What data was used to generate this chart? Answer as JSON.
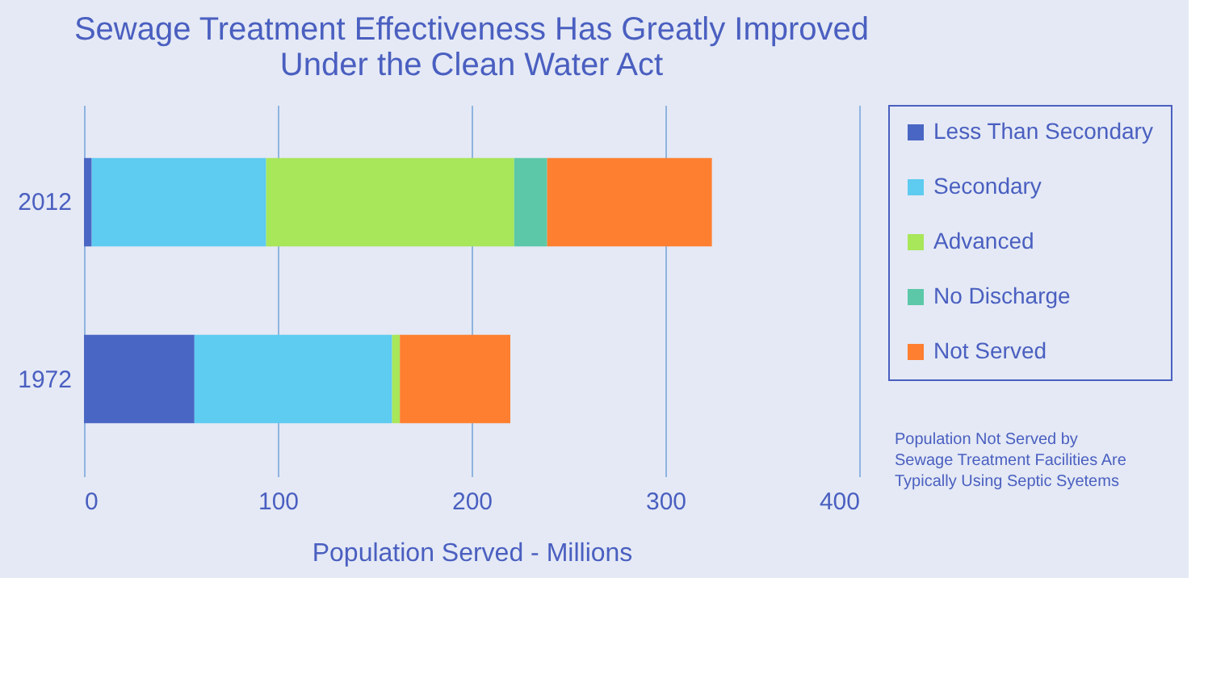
{
  "chart_data": {
    "type": "bar",
    "orientation": "horizontal",
    "stacked": true,
    "title": "Sewage Treatment Effectiveness Has Greatly Improved\nUnder the Clean Water Act",
    "xlabel": "Population Served - Millions",
    "categories": [
      "2012",
      "1972"
    ],
    "series": [
      {
        "name": "Less Than Secondary",
        "color": "#4a66c4",
        "values": [
          4,
          57
        ]
      },
      {
        "name": "Secondary",
        "color": "#5ecbf0",
        "values": [
          90,
          102
        ]
      },
      {
        "name": "Advanced",
        "color": "#a8e65a",
        "values": [
          128,
          4
        ]
      },
      {
        "name": "No Discharge",
        "color": "#5cc8a8",
        "values": [
          17,
          0
        ]
      },
      {
        "name": "Not Served",
        "color": "#ff7f30",
        "values": [
          85,
          57
        ]
      }
    ],
    "xlim": [
      0,
      400
    ],
    "xticks": [
      0,
      100,
      200,
      300,
      400
    ],
    "grid": "x",
    "legend": "right",
    "annotations": [
      "Population Not Served by\nSewage Treatment Facilities Are\nTypically Using Septic Syetems"
    ]
  }
}
